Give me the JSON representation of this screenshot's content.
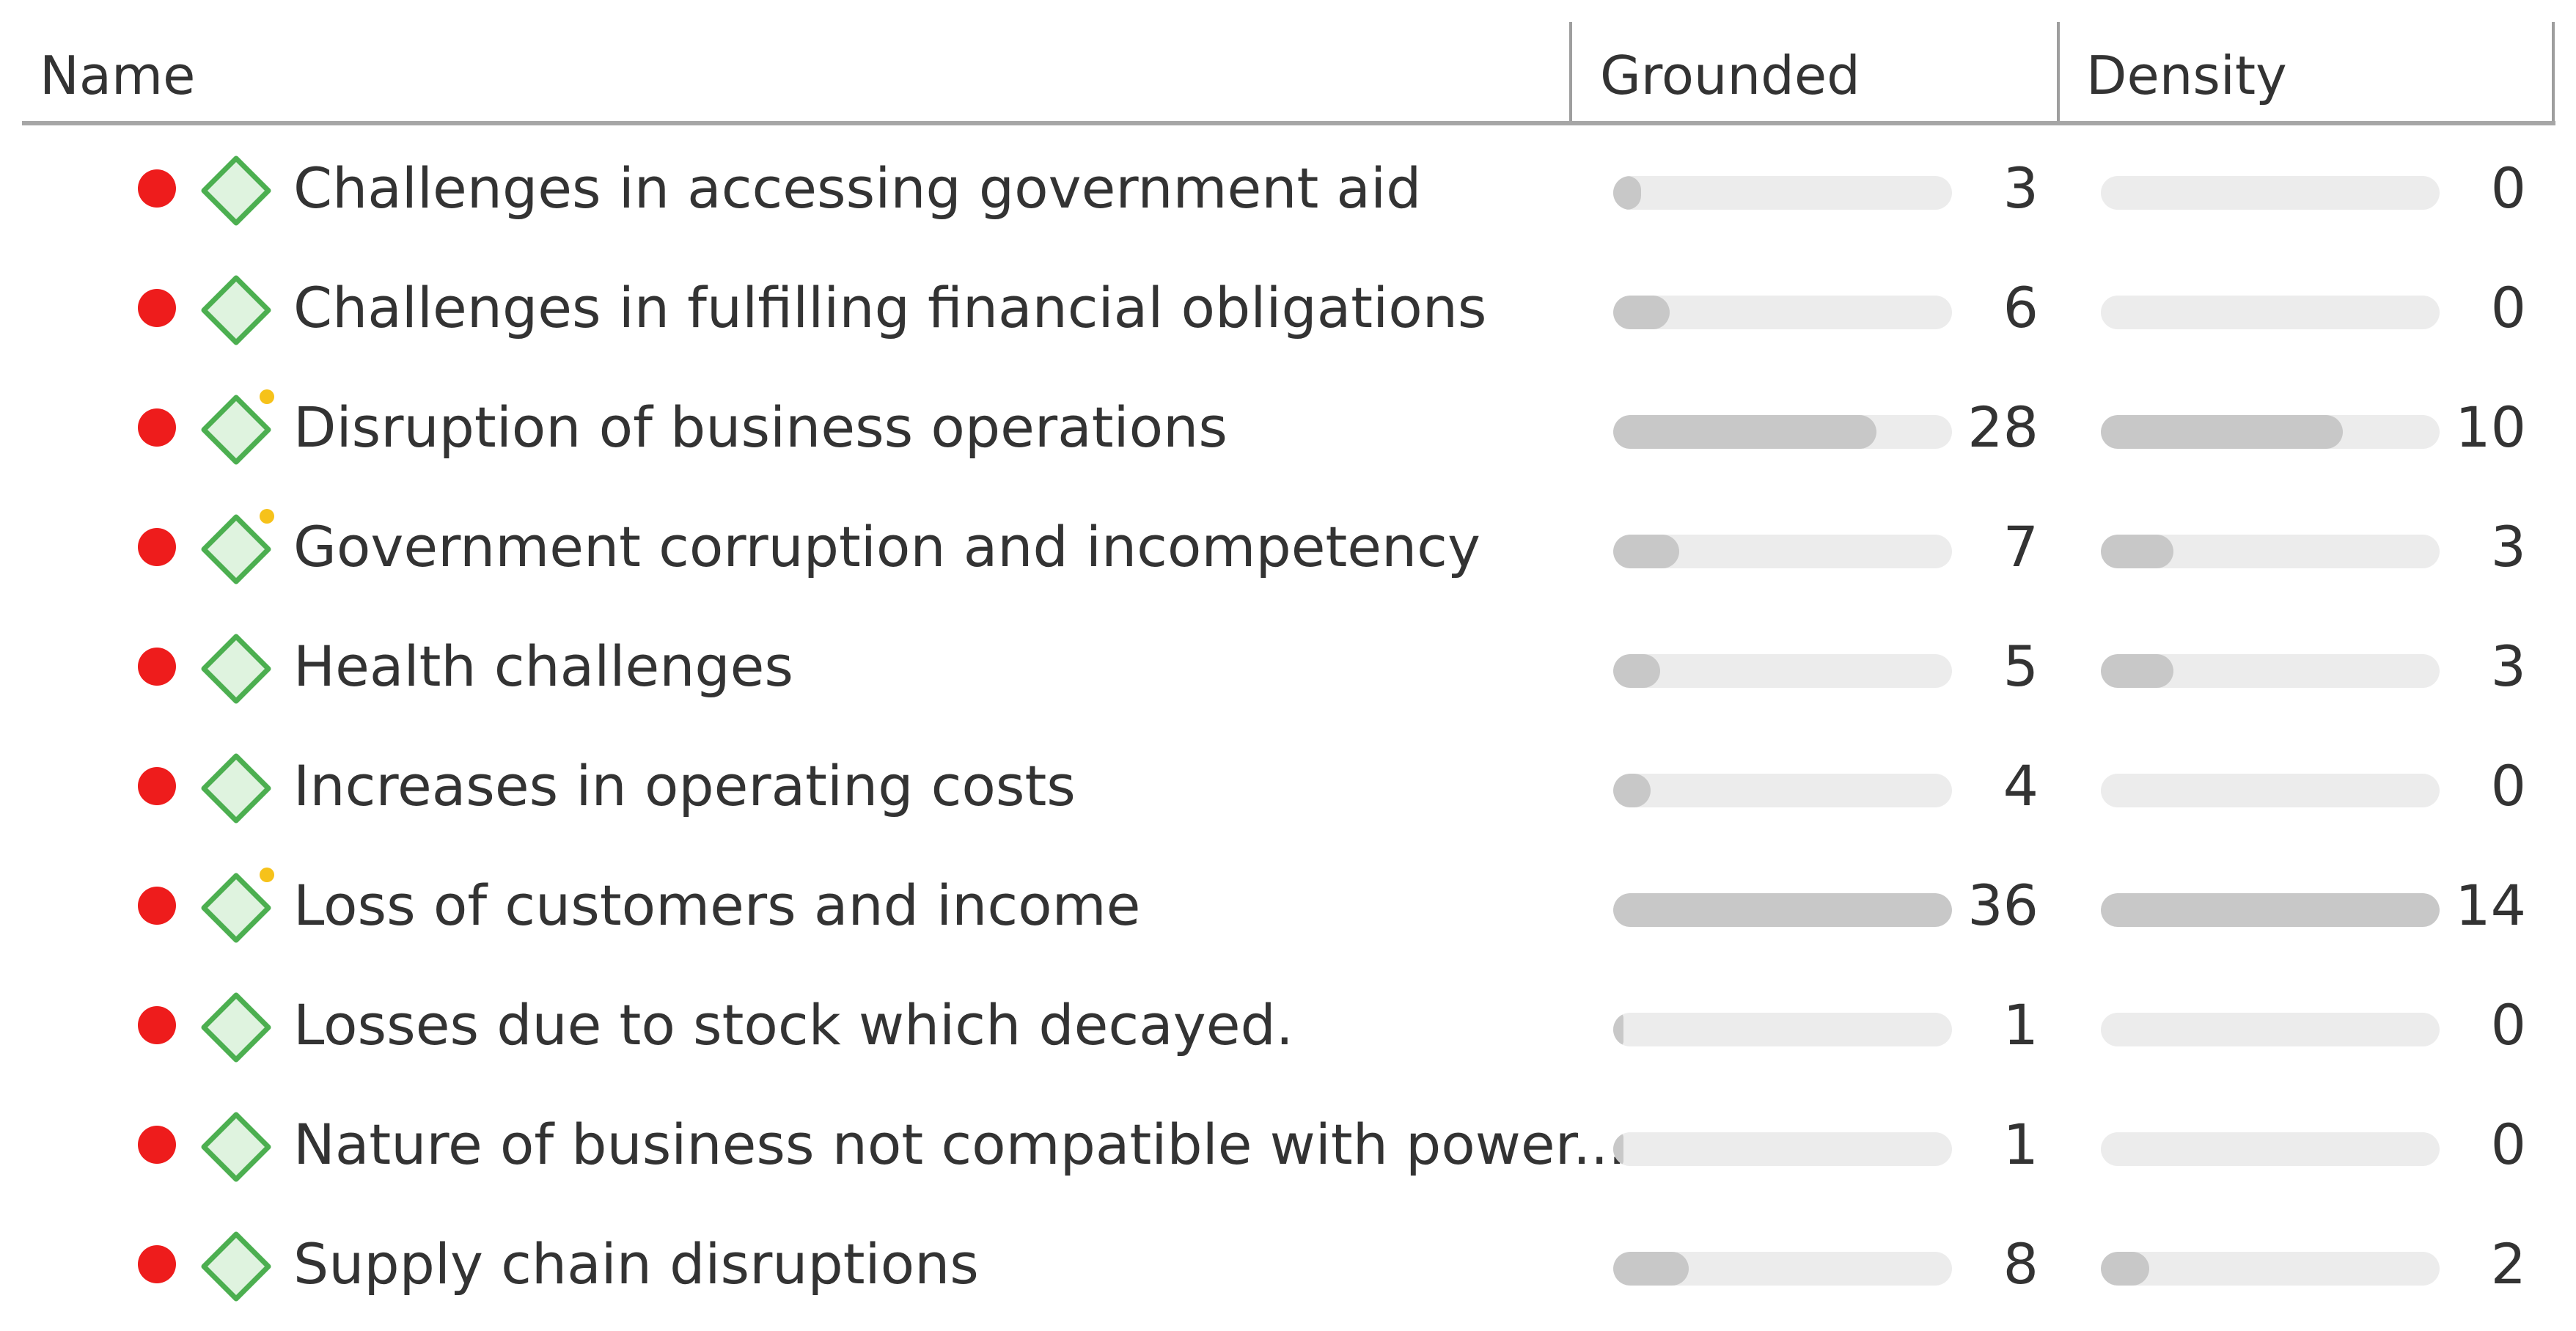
{
  "columns": {
    "name": "Name",
    "grounded": "Grounded",
    "density": "Density"
  },
  "colors": {
    "status_dot": "#ee1c1c",
    "code_icon_stroke": "#4caf50",
    "code_icon_fill": "#dff3df",
    "comment_marker": "#f6c21a",
    "bar_track": "#ececec",
    "bar_fill": "#c8c8c8"
  },
  "icons": {
    "status": "red-dot-icon",
    "code": "code-diamond-icon",
    "comment": "comment-marker-icon"
  },
  "max": {
    "grounded": 36,
    "density": 14
  },
  "rows": [
    {
      "name": "Challenges in accessing government aid",
      "grounded": "3",
      "density": "0",
      "has_comment": false
    },
    {
      "name": "Challenges in fulfilling financial obligations",
      "grounded": "6",
      "density": "0",
      "has_comment": false
    },
    {
      "name": "Disruption of business operations",
      "grounded": "28",
      "density": "10",
      "has_comment": true
    },
    {
      "name": "Government corruption and incompetency",
      "grounded": "7",
      "density": "3",
      "has_comment": true
    },
    {
      "name": "Health challenges",
      "grounded": "5",
      "density": "3",
      "has_comment": false
    },
    {
      "name": "Increases in operating costs",
      "grounded": "4",
      "density": "0",
      "has_comment": false
    },
    {
      "name": "Loss of customers and income",
      "grounded": "36",
      "density": "14",
      "has_comment": true
    },
    {
      "name": "Losses due to stock which decayed.",
      "grounded": "1",
      "density": "0",
      "has_comment": false
    },
    {
      "name": "Nature of business not compatible with power...",
      "grounded": "1",
      "density": "0",
      "has_comment": false
    },
    {
      "name": "Supply chain disruptions",
      "grounded": "8",
      "density": "2",
      "has_comment": false
    }
  ]
}
